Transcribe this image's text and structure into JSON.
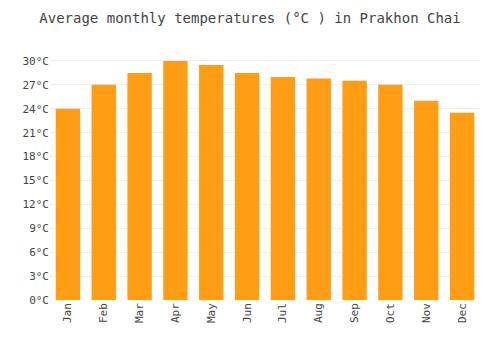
{
  "chart_data": {
    "type": "bar",
    "title": "Average monthly temperatures (°C ) in Prakhon Chai",
    "categories": [
      "Jan",
      "Feb",
      "Mar",
      "Apr",
      "May",
      "Jun",
      "Jul",
      "Aug",
      "Sep",
      "Oct",
      "Nov",
      "Dec"
    ],
    "values": [
      24.0,
      27.0,
      28.5,
      30.0,
      29.5,
      28.5,
      28.0,
      27.8,
      27.5,
      27.0,
      25.0,
      23.5
    ],
    "color": "#ff9e14",
    "ylim": [
      0,
      32
    ],
    "yticks": [
      {
        "value": 0,
        "label": "0°C"
      },
      {
        "value": 3,
        "label": "3°C"
      },
      {
        "value": 6,
        "label": "6°C"
      },
      {
        "value": 9,
        "label": "9°C"
      },
      {
        "value": 12,
        "label": "12°C"
      },
      {
        "value": 15,
        "label": "15°C"
      },
      {
        "value": 18,
        "label": "18°C"
      },
      {
        "value": 21,
        "label": "21°C"
      },
      {
        "value": 24,
        "label": "24°C"
      },
      {
        "value": 27,
        "label": "27°C"
      },
      {
        "value": 30,
        "label": "30°C"
      }
    ],
    "grid": true
  }
}
